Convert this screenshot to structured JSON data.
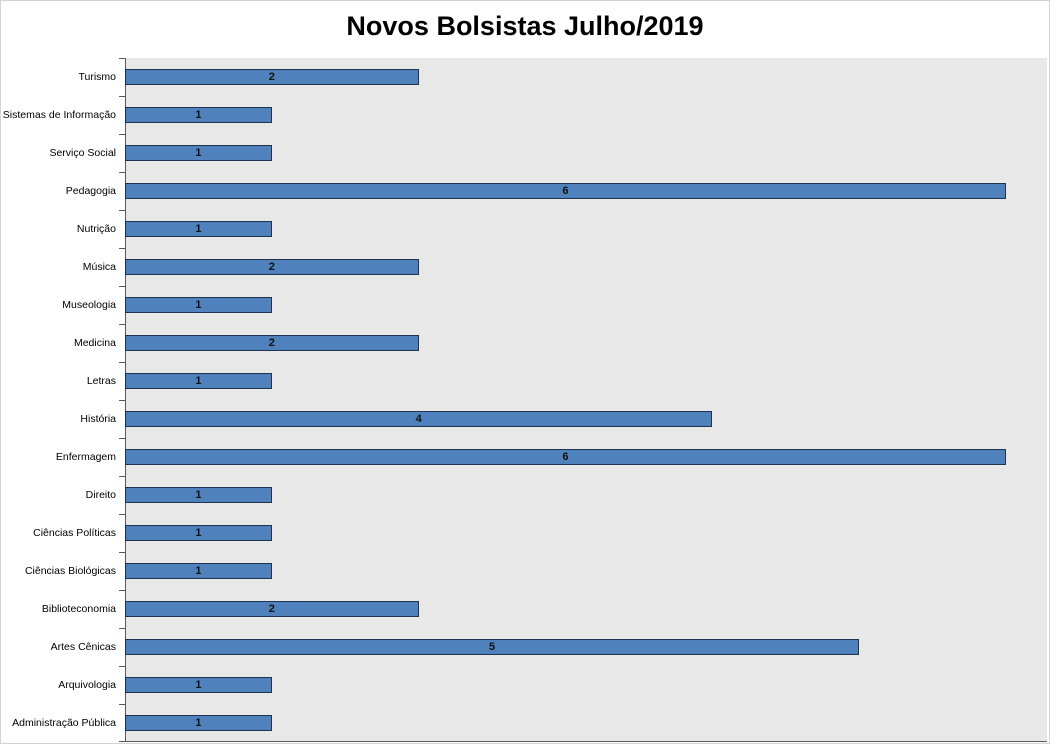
{
  "chart_data": {
    "type": "bar",
    "orientation": "horizontal",
    "title": "Novos Bolsistas Julho/2019",
    "categories": [
      "Turismo",
      "Sistemas de Informação",
      "Serviço Social",
      "Pedagogia",
      "Nutrição",
      "Música",
      "Museologia",
      "Medicina",
      "Letras",
      "História",
      "Enfermagem",
      "Direito",
      "Ciências Políticas",
      "Ciências Biológicas",
      "Biblioteconomia",
      "Artes Cênicas",
      "Arquivologia",
      "Administração Pública"
    ],
    "values": [
      2,
      1,
      1,
      6,
      1,
      2,
      1,
      2,
      1,
      4,
      6,
      1,
      1,
      1,
      2,
      5,
      1,
      1
    ],
    "category_order": "top-to-bottom",
    "xlabel": "",
    "ylabel": "",
    "xlim": [
      0,
      6.28
    ],
    "grid": false,
    "legend": "none",
    "data_labels": true,
    "colors": {
      "bar_fill": "#4F81BD",
      "bar_border": "#1F3350",
      "plot_background": "#E8E8E8",
      "axis_line": "#595959",
      "title_color": "#000000",
      "category_label_color": "#000000",
      "data_label_color": "#111111"
    }
  }
}
